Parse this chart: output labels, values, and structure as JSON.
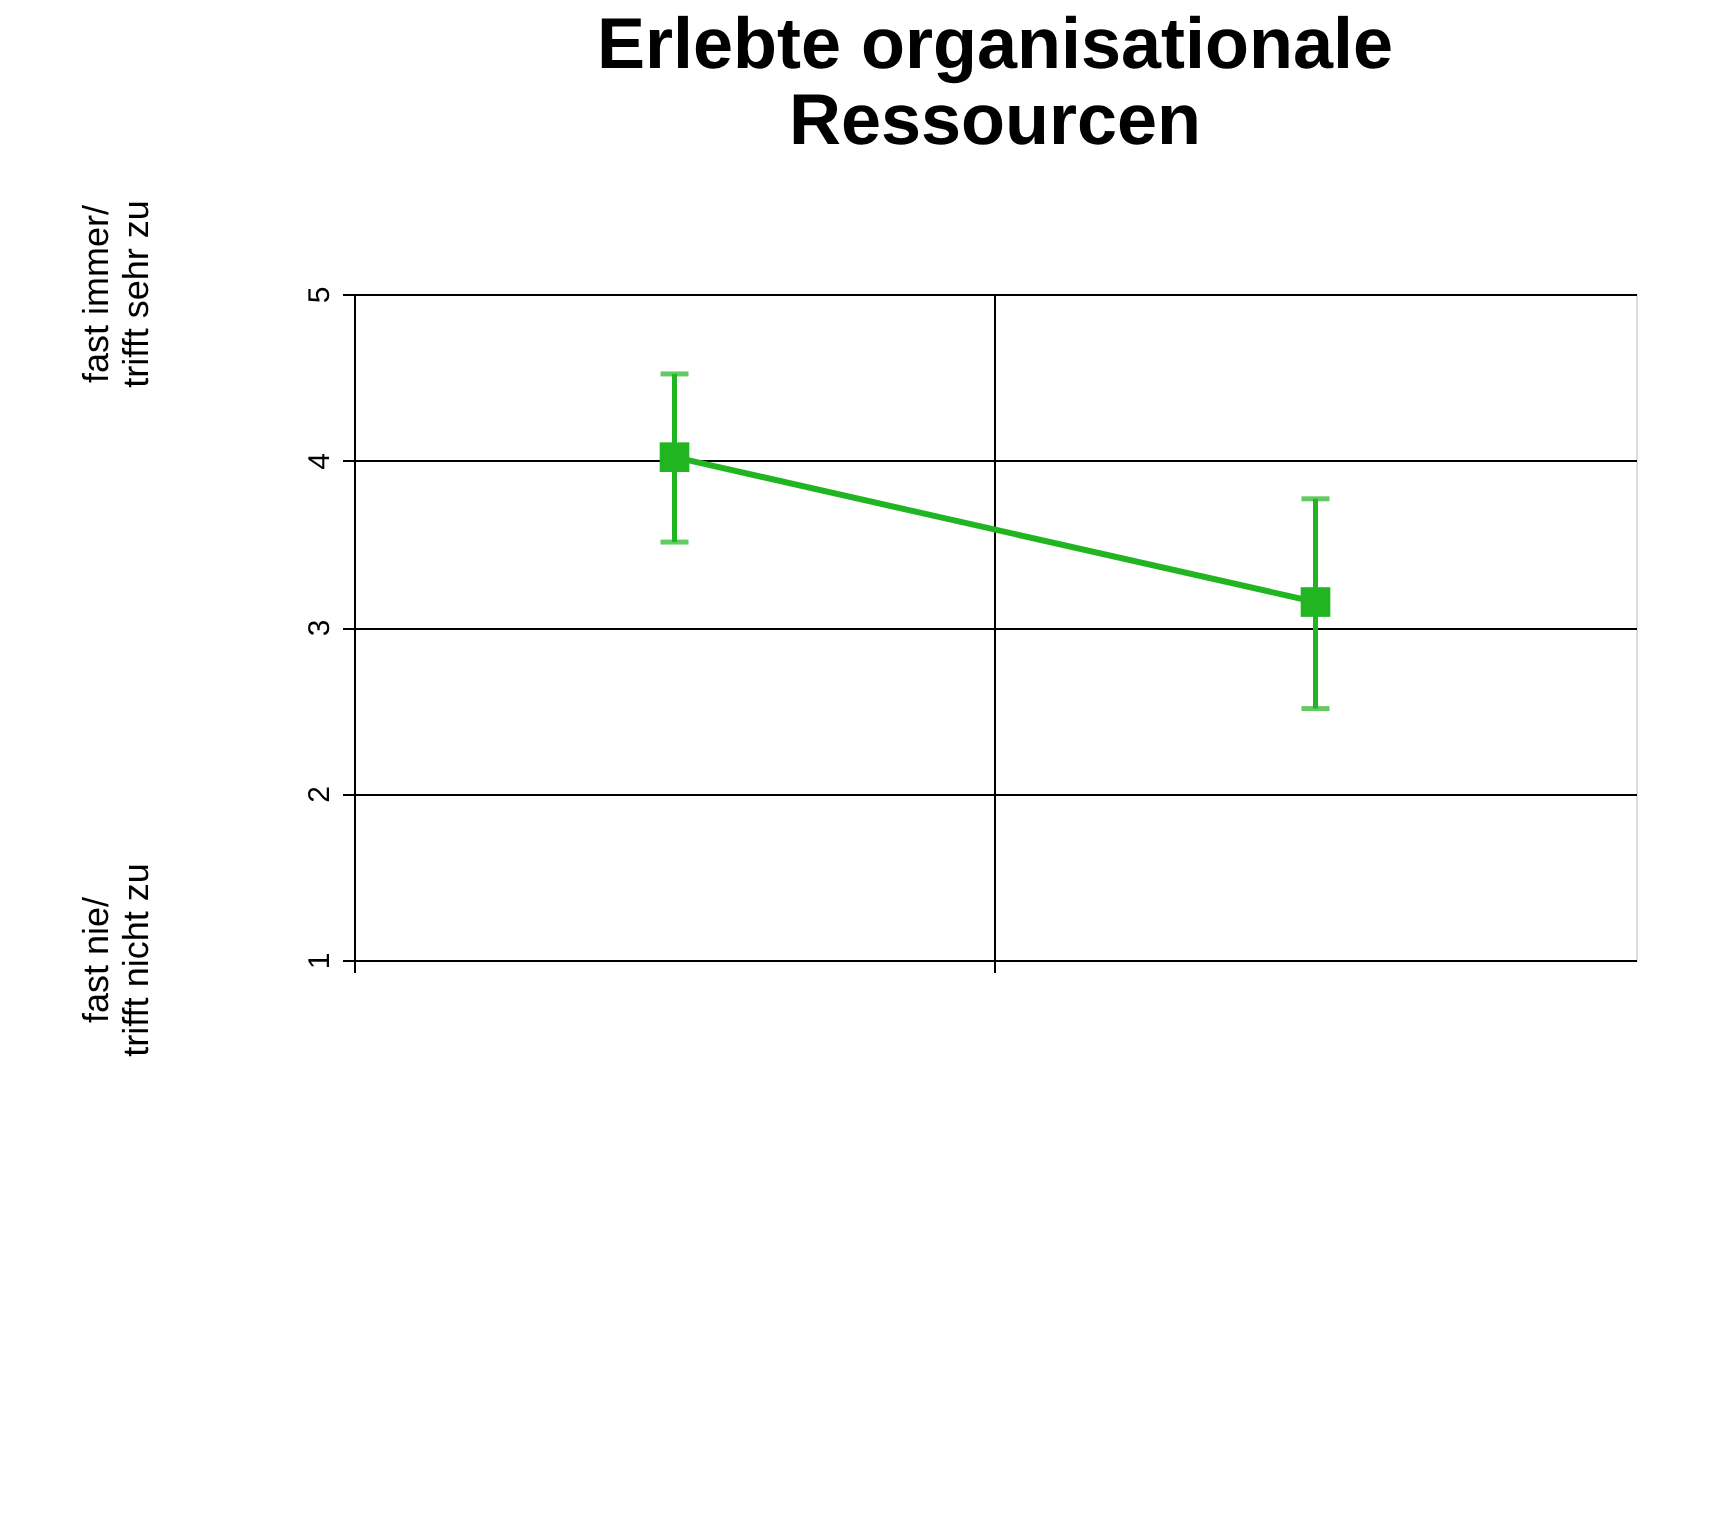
{
  "chart_data": {
    "type": "line",
    "title": "Erlebte organisationale\nRessourcen",
    "categories": [
      null,
      null
    ],
    "series": [
      {
        "color": "#22b522",
        "values": [
          4.02,
          3.15
        ],
        "errors": [
          [
            3.51,
            4.52
          ],
          [
            2.51,
            3.77
          ]
        ]
      }
    ],
    "ylim": [
      1,
      5
    ],
    "yticks": [
      1,
      2,
      3,
      4,
      5
    ],
    "grid": true,
    "marker": "square",
    "line_style": "solid",
    "annotations": [
      "fast immer/\ntrifft sehr zu",
      "fast nie/\ntrifft nicht zu"
    ]
  }
}
